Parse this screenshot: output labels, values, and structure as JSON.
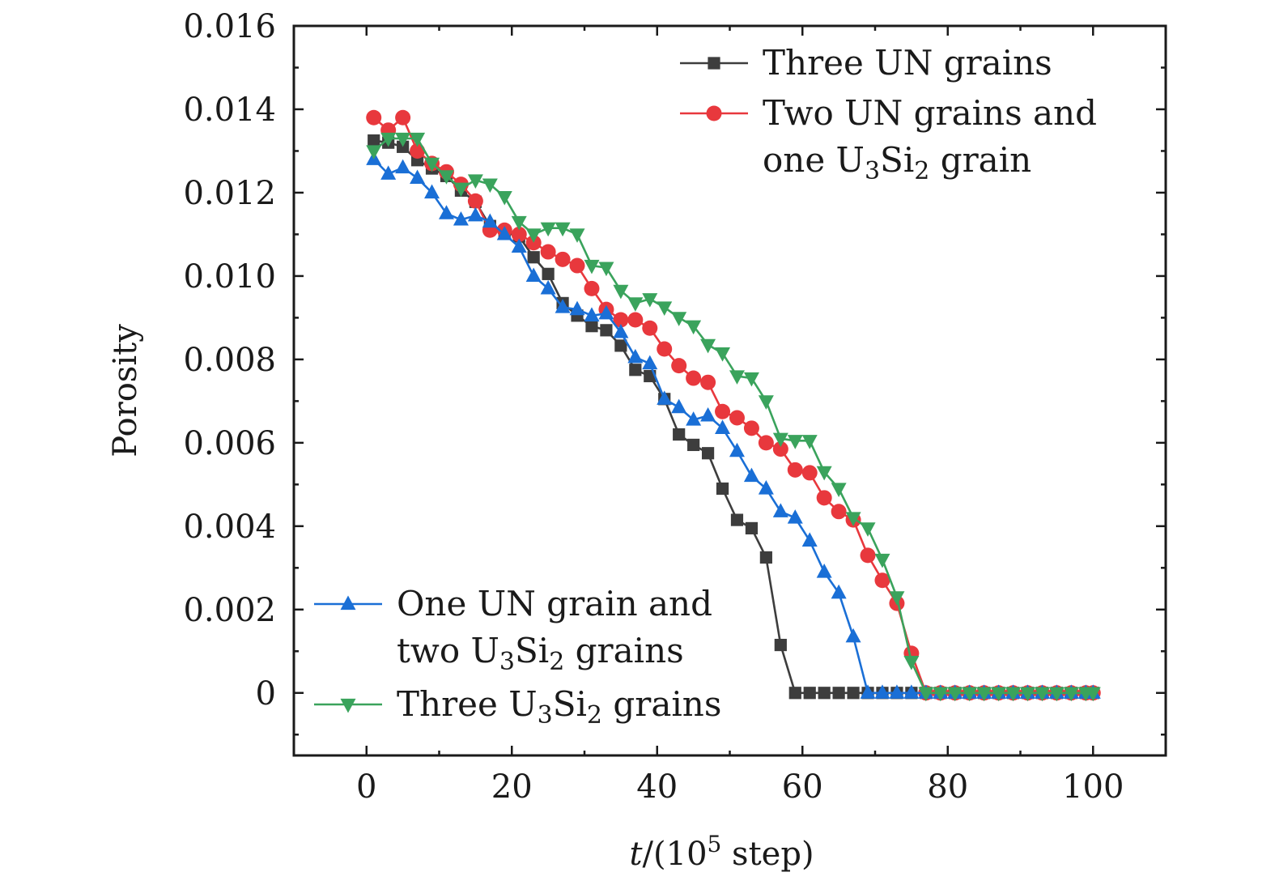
{
  "chart_data": {
    "type": "line",
    "xlabel": "t/(10^5 step)",
    "xlabel_parts": {
      "italic": "t",
      "open": "/(10",
      "sup": "5",
      "close": " step)"
    },
    "ylabel": "Porosity",
    "xlim": [
      -10,
      110
    ],
    "ylim": [
      -0.0015,
      0.016
    ],
    "xticks": [
      0,
      20,
      40,
      60,
      80,
      100
    ],
    "xtick_labels": [
      "0",
      "20",
      "40",
      "60",
      "80",
      "100"
    ],
    "yticks": [
      0,
      0.002,
      0.004,
      0.006,
      0.008,
      0.01,
      0.012,
      0.014,
      0.016
    ],
    "ytick_labels": [
      "0",
      "0.002",
      "0.004",
      "0.006",
      "0.008",
      "0.010",
      "0.012",
      "0.014",
      "0.016"
    ],
    "grid": false,
    "series": [
      {
        "name": "Three UN grains",
        "color": "#3d3d3d",
        "marker": "square",
        "legend_position": "top-right",
        "legend_lines": [
          "Three UN grains"
        ],
        "x": [
          1,
          3,
          5,
          7,
          9,
          11,
          13,
          15,
          17,
          19,
          21,
          23,
          25,
          27,
          29,
          31,
          33,
          35,
          37,
          39,
          41,
          43,
          45,
          47,
          49,
          51,
          53,
          55,
          57,
          59,
          61,
          63,
          65,
          67,
          69,
          71,
          73,
          75,
          77,
          79,
          81,
          83,
          85,
          87,
          89,
          91,
          93,
          95,
          97,
          99,
          100
        ],
        "y": [
          0.01325,
          0.0132,
          0.0131,
          0.01278,
          0.01258,
          0.0124,
          0.01205,
          0.01178,
          0.0112,
          0.01105,
          0.01095,
          0.01045,
          0.01005,
          0.00935,
          0.00905,
          0.0088,
          0.0087,
          0.00833,
          0.00775,
          0.0076,
          0.00705,
          0.0062,
          0.00595,
          0.00575,
          0.0049,
          0.00415,
          0.00395,
          0.00325,
          0.00115,
          0.0,
          0.0,
          0.0,
          0.0,
          0.0,
          0.0,
          0.0,
          0.0,
          0.0,
          0.0,
          0.0,
          0.0,
          0.0,
          0.0,
          0.0,
          0.0,
          0.0,
          0.0,
          0.0,
          0.0,
          0.0,
          0.0
        ]
      },
      {
        "name": "Two UN grains and one U3Si2 grain",
        "color": "#e8383d",
        "marker": "circle",
        "legend_position": "top-right",
        "legend_lines": [
          "Two UN grains and",
          "one U",
          "3",
          "Si",
          "2",
          " grain"
        ],
        "x": [
          1,
          3,
          5,
          7,
          9,
          11,
          13,
          15,
          17,
          19,
          21,
          23,
          25,
          27,
          29,
          31,
          33,
          35,
          37,
          39,
          41,
          43,
          45,
          47,
          49,
          51,
          53,
          55,
          57,
          59,
          61,
          63,
          65,
          67,
          69,
          71,
          73,
          75,
          77,
          79,
          81,
          83,
          85,
          87,
          89,
          91,
          93,
          95,
          97,
          99,
          100
        ],
        "y": [
          0.0138,
          0.0135,
          0.0138,
          0.013,
          0.0127,
          0.0125,
          0.0122,
          0.0118,
          0.0111,
          0.0111,
          0.011,
          0.0108,
          0.01058,
          0.0104,
          0.01025,
          0.0097,
          0.0092,
          0.00895,
          0.00895,
          0.00875,
          0.00825,
          0.00785,
          0.00755,
          0.00745,
          0.00675,
          0.0066,
          0.00635,
          0.006,
          0.00585,
          0.00535,
          0.00528,
          0.00468,
          0.00435,
          0.00415,
          0.0033,
          0.0027,
          0.00215,
          0.00095,
          0.0,
          0.0,
          0.0,
          0.0,
          0.0,
          0.0,
          0.0,
          0.0,
          0.0,
          0.0,
          0.0,
          0.0,
          0.0
        ]
      },
      {
        "name": "One UN grain and two U3Si2 grains",
        "color": "#1a6fd6",
        "marker": "triangle-up",
        "legend_position": "bottom-left",
        "legend_lines": [
          "One UN grain and",
          "two U",
          "3",
          "Si",
          "2",
          " grains"
        ],
        "x": [
          1,
          3,
          5,
          7,
          9,
          11,
          13,
          15,
          17,
          19,
          21,
          23,
          25,
          27,
          29,
          31,
          33,
          35,
          37,
          39,
          41,
          43,
          45,
          47,
          49,
          51,
          53,
          55,
          57,
          59,
          61,
          63,
          65,
          67,
          69,
          71,
          73,
          75,
          77,
          79,
          81,
          83,
          85,
          87,
          89,
          91,
          93,
          95,
          97,
          99,
          100
        ],
        "y": [
          0.0128,
          0.01245,
          0.0126,
          0.01235,
          0.012,
          0.0115,
          0.01135,
          0.01145,
          0.0113,
          0.011,
          0.0107,
          0.01,
          0.0097,
          0.00925,
          0.0092,
          0.00905,
          0.0091,
          0.00865,
          0.00805,
          0.0079,
          0.00705,
          0.00685,
          0.00655,
          0.00665,
          0.00635,
          0.0058,
          0.0052,
          0.0049,
          0.00435,
          0.0042,
          0.00365,
          0.0029,
          0.0024,
          0.00135,
          0.0,
          0.0,
          0.0,
          0.0,
          0.0,
          0.0,
          0.0,
          0.0,
          0.0,
          0.0,
          0.0,
          0.0,
          0.0,
          0.0,
          0.0,
          0.0,
          0.0
        ]
      },
      {
        "name": "Three U3Si2 grains",
        "color": "#3aa35c",
        "marker": "triangle-down",
        "legend_position": "bottom-left",
        "legend_lines": [
          "Three U",
          "3",
          "Si",
          "2",
          " grains"
        ],
        "x": [
          1,
          3,
          5,
          7,
          9,
          11,
          13,
          15,
          17,
          19,
          21,
          23,
          25,
          27,
          29,
          31,
          33,
          35,
          37,
          39,
          41,
          43,
          45,
          47,
          49,
          51,
          53,
          55,
          57,
          59,
          61,
          63,
          65,
          67,
          69,
          71,
          73,
          75,
          77,
          79,
          81,
          83,
          85,
          87,
          89,
          91,
          93,
          95,
          97,
          99,
          100
        ],
        "y": [
          0.013,
          0.0133,
          0.0133,
          0.0133,
          0.0127,
          0.0124,
          0.0121,
          0.0123,
          0.0122,
          0.0119,
          0.0113,
          0.011,
          0.01115,
          0.01115,
          0.011,
          0.01025,
          0.0102,
          0.00965,
          0.00935,
          0.00945,
          0.00925,
          0.009,
          0.0088,
          0.00835,
          0.00815,
          0.0076,
          0.00755,
          0.007,
          0.0061,
          0.00605,
          0.00605,
          0.0053,
          0.0049,
          0.0042,
          0.00395,
          0.0032,
          0.0023,
          0.00075,
          0.0,
          0.0,
          0.0,
          0.0,
          0.0,
          0.0,
          0.0,
          0.0,
          0.0,
          0.0,
          0.0,
          0.0,
          0.0
        ]
      }
    ]
  }
}
